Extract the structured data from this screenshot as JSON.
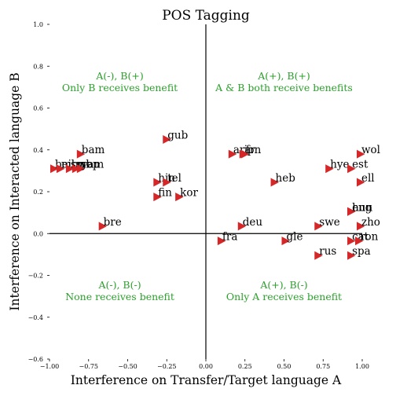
{
  "chart_data": {
    "type": "scatter",
    "title": "POS Tagging",
    "xlabel": "Interference on Transfer/Target language A",
    "ylabel": "Interference on Interacted language B",
    "xlim": [
      -1.0,
      1.0
    ],
    "ylim": [
      -0.6,
      1.0
    ],
    "x_ticks": [
      "−1.00",
      "−0.75",
      "−0.50",
      "−0.25",
      "0.00",
      "0.25",
      "0.50",
      "0.75",
      "1.00"
    ],
    "y_ticks": [
      "−0.6",
      "−0.4",
      "−0.2",
      "0.0",
      "0.2",
      "0.4",
      "0.6",
      "0.8",
      "1.0"
    ],
    "marker_color": "#d62728",
    "marker": "triangle-right",
    "quadrant_color": "#2ca02c",
    "quadrants": [
      {
        "line1": "A(-), B(+)",
        "line2": "Only B receives benefit",
        "x": -0.55,
        "y": 0.7
      },
      {
        "line1": "A(+), B(+)",
        "line2": "A & B both receive benefits",
        "x": 0.5,
        "y": 0.7
      },
      {
        "line1": "A(-), B(-)",
        "line2": "None receives benefit",
        "x": -0.55,
        "y": -0.3
      },
      {
        "line1": "A(+), B(-)",
        "line2": "Only A receives benefit",
        "x": 0.5,
        "y": -0.3
      }
    ],
    "points": [
      {
        "label": "gub",
        "x": -0.25,
        "y": 0.45
      },
      {
        "label": "bam",
        "x": -0.8,
        "y": 0.38
      },
      {
        "label": "bej",
        "x": -0.97,
        "y": 0.31
      },
      {
        "label": "mbc",
        "x": -0.93,
        "y": 0.31
      },
      {
        "label": "sme",
        "x": -0.87,
        "y": 0.31
      },
      {
        "label": "wbp",
        "x": -0.83,
        "y": 0.31
      },
      {
        "label": "yam",
        "x": -0.8,
        "y": 0.31
      },
      {
        "label": "hin",
        "x": -0.31,
        "y": 0.245
      },
      {
        "label": "tel",
        "x": -0.25,
        "y": 0.245
      },
      {
        "label": "fin",
        "x": -0.31,
        "y": 0.175
      },
      {
        "label": "kor",
        "x": -0.17,
        "y": 0.175
      },
      {
        "label": "bre",
        "x": -0.66,
        "y": 0.035
      },
      {
        "label": "ara",
        "x": 0.17,
        "y": 0.38
      },
      {
        "label": "jpn",
        "x": 0.24,
        "y": 0.38
      },
      {
        "label": "fr",
        "x": 0.25,
        "y": 0.38
      },
      {
        "label": "wol",
        "x": 0.99,
        "y": 0.38
      },
      {
        "label": "hye",
        "x": 0.79,
        "y": 0.31
      },
      {
        "label": "est",
        "x": 0.93,
        "y": 0.31
      },
      {
        "label": "heb",
        "x": 0.44,
        "y": 0.245
      },
      {
        "label": "ell",
        "x": 0.99,
        "y": 0.245
      },
      {
        "label": "eng",
        "x": 0.93,
        "y": 0.105
      },
      {
        "label": "hun",
        "x": 0.93,
        "y": 0.105
      },
      {
        "label": "deu",
        "x": 0.23,
        "y": 0.035
      },
      {
        "label": "swe",
        "x": 0.72,
        "y": 0.035
      },
      {
        "label": "zho",
        "x": 0.99,
        "y": 0.035
      },
      {
        "label": "fra",
        "x": 0.1,
        "y": -0.035
      },
      {
        "label": "gle",
        "x": 0.51,
        "y": -0.035
      },
      {
        "label": "cat",
        "x": 0.93,
        "y": -0.035
      },
      {
        "label": "ron",
        "x": 0.98,
        "y": -0.035
      },
      {
        "label": "rus",
        "x": 0.72,
        "y": -0.105
      },
      {
        "label": "spa",
        "x": 0.93,
        "y": -0.105
      }
    ]
  }
}
